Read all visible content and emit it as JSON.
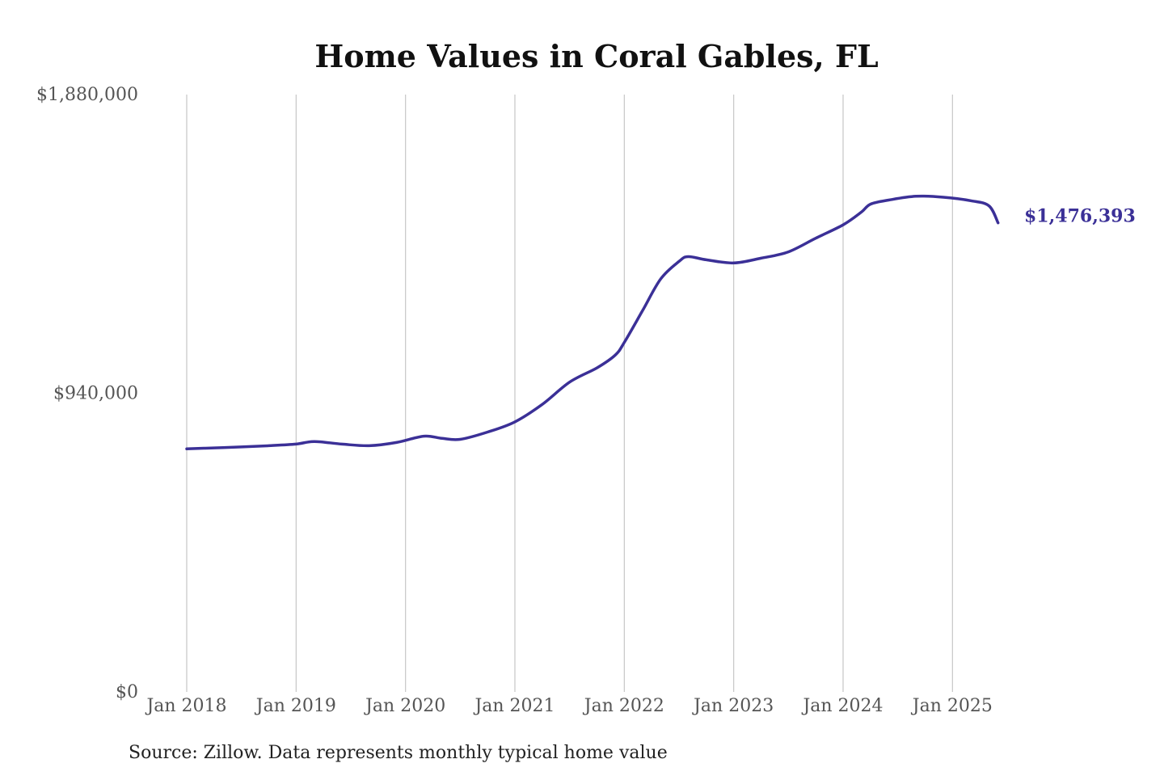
{
  "chart_data": {
    "type": "line",
    "title": "Home Values in Coral Gables, FL",
    "xlabel": "",
    "ylabel": "",
    "ylim": [
      0,
      1880000
    ],
    "xlim": [
      "2018-01",
      "2025-07"
    ],
    "y_ticks": [
      {
        "value": 0,
        "label": "$0"
      },
      {
        "value": 940000,
        "label": "$940,000"
      },
      {
        "value": 1880000,
        "label": "$1,880,000"
      }
    ],
    "x_ticks": [
      {
        "value": "2018-01",
        "label": "Jan 2018"
      },
      {
        "value": "2019-01",
        "label": "Jan 2019"
      },
      {
        "value": "2020-01",
        "label": "Jan 2020"
      },
      {
        "value": "2021-01",
        "label": "Jan 2021"
      },
      {
        "value": "2022-01",
        "label": "Jan 2022"
      },
      {
        "value": "2023-01",
        "label": "Jan 2023"
      },
      {
        "value": "2024-01",
        "label": "Jan 2024"
      },
      {
        "value": "2025-01",
        "label": "Jan 2025"
      }
    ],
    "grid": {
      "vertical": true,
      "horizontal": false
    },
    "legend": "none",
    "end_label": "$1,476,393",
    "series": [
      {
        "color": "#3b3097",
        "points": [
          {
            "x": "2018-01",
            "y": 765000
          },
          {
            "x": "2018-04",
            "y": 768000
          },
          {
            "x": "2018-07",
            "y": 771000
          },
          {
            "x": "2018-10",
            "y": 775000
          },
          {
            "x": "2019-01",
            "y": 780000
          },
          {
            "x": "2019-03",
            "y": 788000
          },
          {
            "x": "2019-06",
            "y": 780000
          },
          {
            "x": "2019-09",
            "y": 775000
          },
          {
            "x": "2019-12",
            "y": 785000
          },
          {
            "x": "2020-03",
            "y": 805000
          },
          {
            "x": "2020-05",
            "y": 798000
          },
          {
            "x": "2020-07",
            "y": 795000
          },
          {
            "x": "2020-10",
            "y": 818000
          },
          {
            "x": "2021-01",
            "y": 850000
          },
          {
            "x": "2021-04",
            "y": 905000
          },
          {
            "x": "2021-07",
            "y": 975000
          },
          {
            "x": "2021-10",
            "y": 1020000
          },
          {
            "x": "2021-12",
            "y": 1060000
          },
          {
            "x": "2022-01",
            "y": 1100000
          },
          {
            "x": "2022-03",
            "y": 1200000
          },
          {
            "x": "2022-05",
            "y": 1300000
          },
          {
            "x": "2022-07",
            "y": 1355000
          },
          {
            "x": "2022-08",
            "y": 1370000
          },
          {
            "x": "2022-10",
            "y": 1360000
          },
          {
            "x": "2023-01",
            "y": 1350000
          },
          {
            "x": "2023-04",
            "y": 1365000
          },
          {
            "x": "2023-07",
            "y": 1385000
          },
          {
            "x": "2023-10",
            "y": 1428000
          },
          {
            "x": "2024-01",
            "y": 1470000
          },
          {
            "x": "2024-03",
            "y": 1510000
          },
          {
            "x": "2024-04",
            "y": 1535000
          },
          {
            "x": "2024-06",
            "y": 1548000
          },
          {
            "x": "2024-09",
            "y": 1560000
          },
          {
            "x": "2024-12",
            "y": 1557000
          },
          {
            "x": "2025-03",
            "y": 1546000
          },
          {
            "x": "2025-05",
            "y": 1530000
          },
          {
            "x": "2025-06",
            "y": 1476393
          }
        ]
      }
    ]
  },
  "source_note": "Source: Zillow. Data represents monthly typical home value"
}
